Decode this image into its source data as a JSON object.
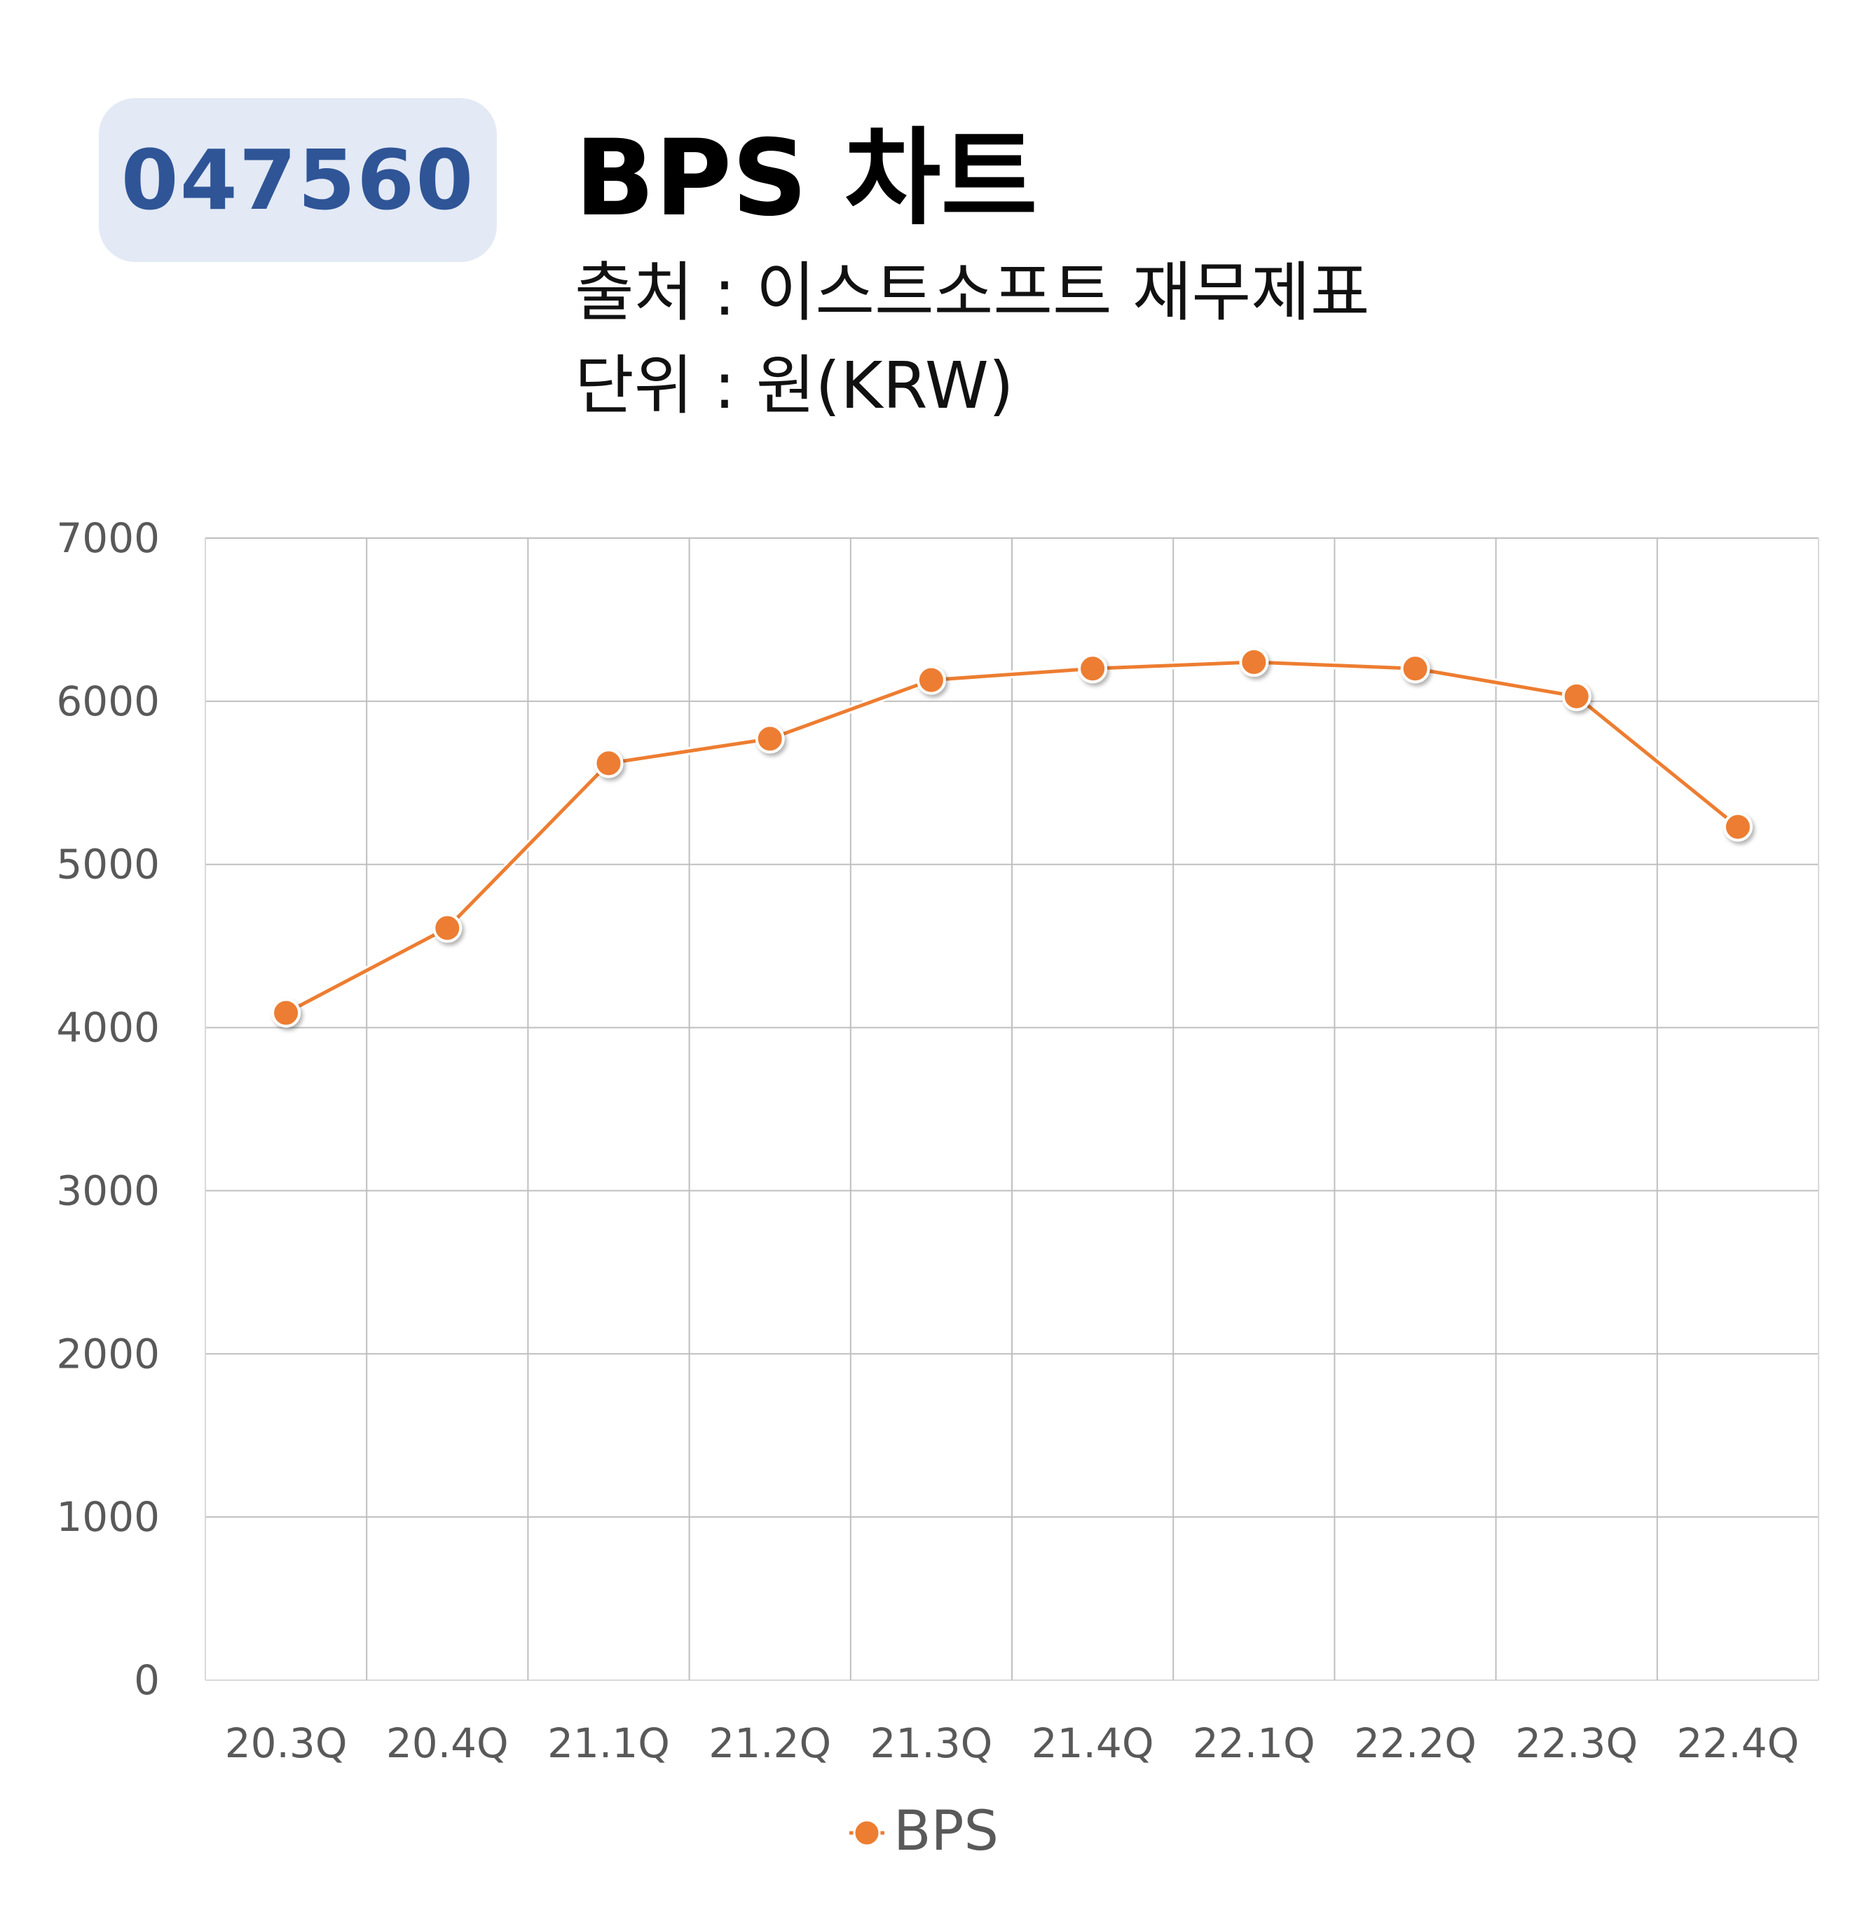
{
  "header": {
    "ticker": "047560",
    "title": "BPS 차트",
    "source": "출처 : 이스트소프트 재무제표",
    "unit": "단위 : 원(KRW)"
  },
  "colors": {
    "badge_bg": "#e3e9f5",
    "badge_text": "#2f5597",
    "series": "#ed7d31",
    "grid": "#bfbfbf",
    "tick_text": "#595959"
  },
  "chart_data": {
    "type": "line",
    "categories": [
      "20.3Q",
      "20.4Q",
      "21.1Q",
      "21.2Q",
      "21.3Q",
      "21.4Q",
      "22.1Q",
      "22.2Q",
      "22.3Q",
      "22.4Q"
    ],
    "series": [
      {
        "name": "BPS",
        "values": [
          4090,
          4610,
          5620,
          5770,
          6130,
          6200,
          6240,
          6200,
          6030,
          5230
        ]
      }
    ],
    "ylim": [
      0,
      7000
    ],
    "yticks": [
      0,
      1000,
      2000,
      3000,
      4000,
      5000,
      6000,
      7000
    ],
    "grid": true,
    "legend_position": "bottom",
    "markers": true
  }
}
